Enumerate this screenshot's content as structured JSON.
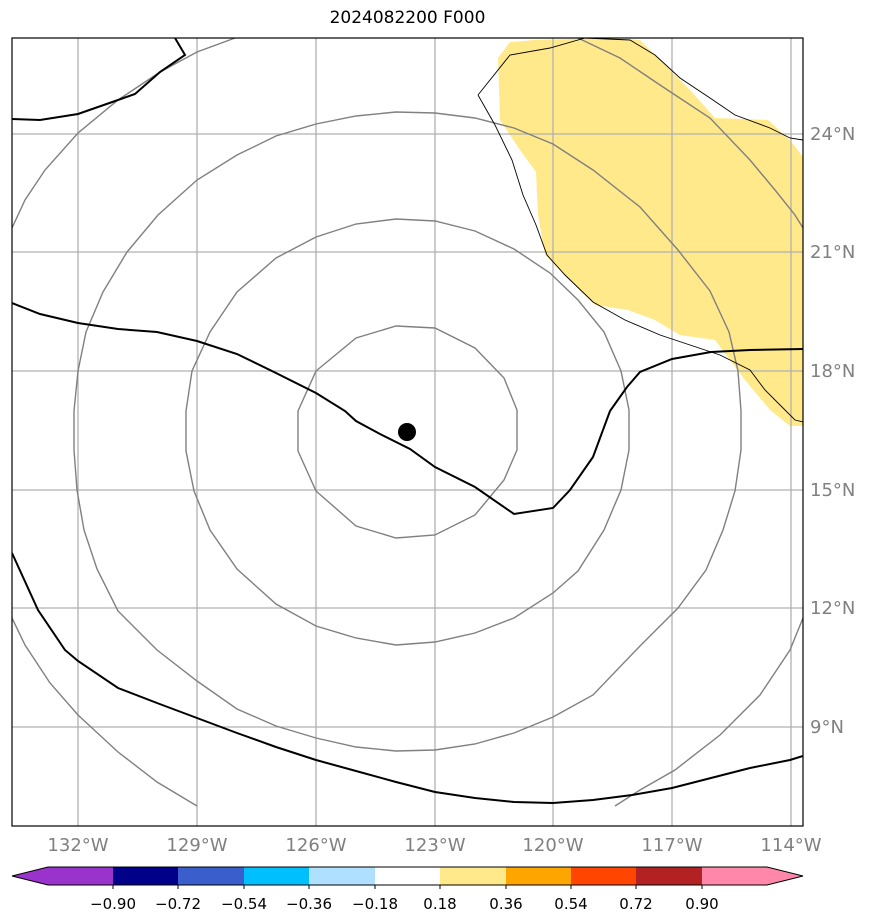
{
  "title": "2024082200 F000",
  "lon_labels": [
    "132°W",
    "129°W",
    "126°W",
    "123°W",
    "120°W",
    "117°W",
    "114°W"
  ],
  "lat_labels": [
    "24°N",
    "21°N",
    "18°N",
    "15°N",
    "12°N",
    "9°N"
  ],
  "colorbar": {
    "colors": [
      "#9933cc",
      "#000088",
      "#3a5fcd",
      "#00bfff",
      "#b0e0ff",
      "#ffffff",
      "#ffe98a",
      "#ffa500",
      "#ff4500",
      "#b22222",
      "#ff88aa"
    ],
    "tick_labels": [
      "−0.90",
      "−0.72",
      "−0.54",
      "−0.36",
      "−0.18",
      "0.18",
      "0.36",
      "0.54",
      "0.72",
      "0.90"
    ]
  },
  "colors": {
    "fill_positive": "#ffe98a",
    "contour_gray": "#808080",
    "contour_black": "#000000",
    "gridline": "#b0b0b0",
    "coastline": "#000000"
  }
}
